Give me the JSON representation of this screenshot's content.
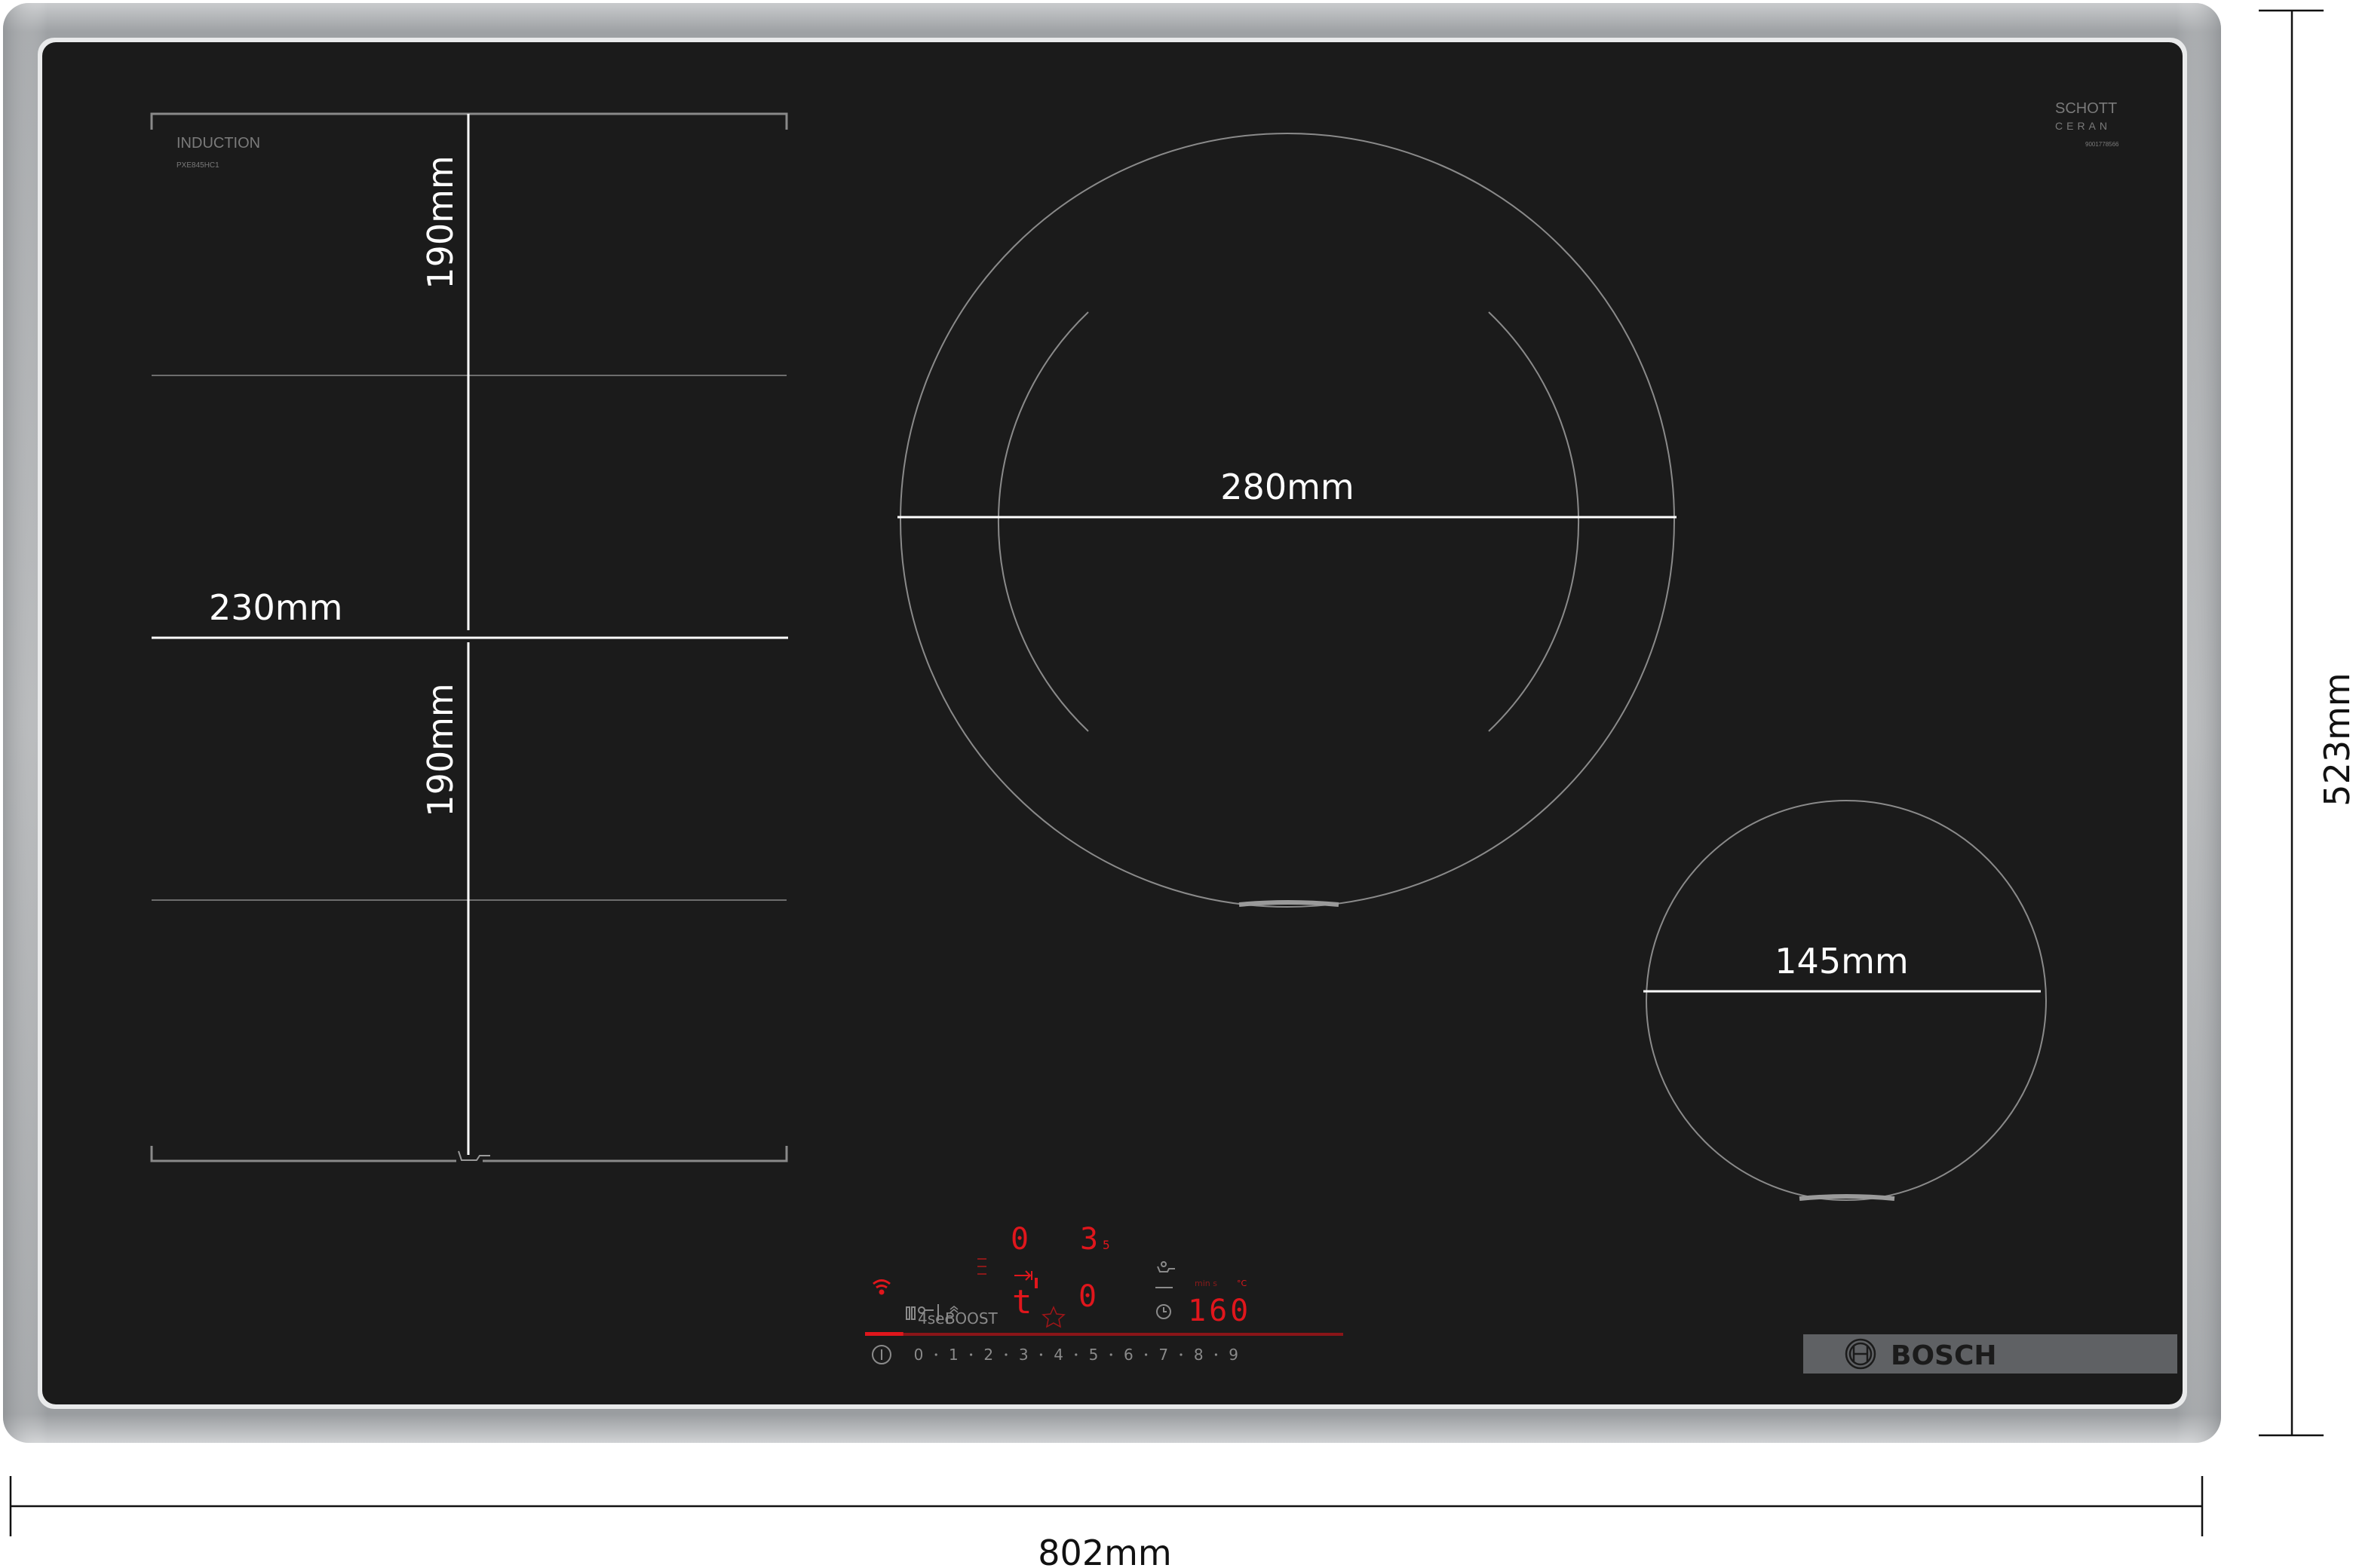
{
  "product": {
    "type_label": "INDUCTION",
    "model": "PXE845HC1",
    "glass_brand_line1": "SCHOTT",
    "glass_brand_line2": "CERAN",
    "glass_code": "9001778566",
    "brand": "BOSCH"
  },
  "dimensions": {
    "width": "802mm",
    "depth": "523mm",
    "flex_zone_width": "230mm",
    "flex_zone_top_depth": "190mm",
    "flex_zone_bottom_depth": "190mm",
    "large_zone_diameter": "280mm",
    "small_zone_diameter": "145mm"
  },
  "control_panel": {
    "display_top_left": "0",
    "display_top_right": "3",
    "display_top_right_sub": "5",
    "display_bottom_left": "t",
    "display_bottom_right": "0",
    "lock_label": "4sec",
    "boost_label": "BOOST",
    "timer_units": "min s",
    "temp_unit": "°C",
    "timer_value": "160",
    "power_levels": [
      "0",
      "1",
      "2",
      "3",
      "4",
      "5",
      "6",
      "7",
      "8",
      "9"
    ],
    "power_level_fraction": 0.08,
    "accent_color": "#e0161c"
  },
  "colors": {
    "glass": "#1b1b1b",
    "frame": "#a9abad",
    "brand_bar": "#5f6164"
  }
}
